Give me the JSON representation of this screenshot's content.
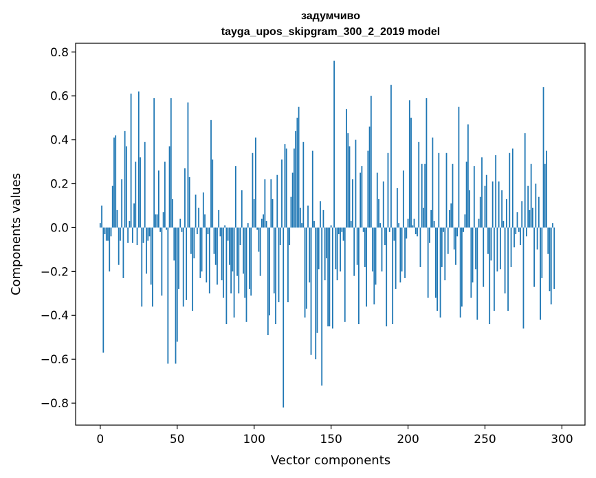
{
  "chart_data": {
    "type": "bar",
    "title": "задумчиво",
    "subtitle": "tayga_upos_skipgram_300_2_2019 model",
    "xlabel": "Vector components",
    "ylabel": "Components values",
    "xlim": [
      -16,
      315
    ],
    "ylim": [
      -0.9,
      0.84
    ],
    "xticks": [
      0,
      50,
      100,
      150,
      200,
      250,
      300
    ],
    "yticks": [
      -0.8,
      -0.6,
      -0.4,
      -0.2,
      0.0,
      0.2,
      0.4,
      0.6,
      0.8
    ],
    "xtick_labels": [
      "0",
      "50",
      "100",
      "150",
      "200",
      "250",
      "300"
    ],
    "ytick_labels": [
      "−0.8",
      "−0.6",
      "−0.4",
      "−0.2",
      "0.0",
      "0.2",
      "0.4",
      "0.6",
      "0.8"
    ],
    "bar_color": "#1f77b4",
    "grid": false,
    "legend": "none",
    "x": "0..299 (component index)",
    "values": [
      0.02,
      0.1,
      -0.57,
      -0.03,
      -0.06,
      -0.06,
      -0.2,
      -0.04,
      0.19,
      0.41,
      0.42,
      0.08,
      -0.17,
      -0.06,
      0.22,
      -0.23,
      0.44,
      0.37,
      -0.07,
      0.03,
      0.61,
      -0.07,
      0.11,
      0.3,
      -0.08,
      0.62,
      0.32,
      -0.36,
      -0.07,
      0.39,
      -0.21,
      -0.06,
      -0.04,
      -0.26,
      -0.36,
      0.59,
      0.06,
      0.06,
      0.26,
      -0.02,
      -0.31,
      0.07,
      0.3,
      -0.01,
      -0.62,
      0.37,
      0.59,
      0.13,
      -0.15,
      -0.62,
      -0.52,
      -0.28,
      0.04,
      -0.02,
      -0.36,
      0.27,
      -0.33,
      0.57,
      0.23,
      -0.12,
      -0.38,
      -0.14,
      0.15,
      -0.03,
      0.09,
      -0.23,
      -0.2,
      0.16,
      0.06,
      -0.25,
      -0.03,
      -0.3,
      0.49,
      0.31,
      -0.12,
      -0.17,
      -0.26,
      0.08,
      -0.04,
      -0.24,
      -0.32,
      0.01,
      -0.44,
      -0.06,
      -0.17,
      -0.3,
      -0.2,
      -0.41,
      0.28,
      -0.22,
      -0.3,
      -0.08,
      0.17,
      -0.21,
      -0.32,
      -0.43,
      0.02,
      -0.28,
      -0.31,
      0.34,
      0.13,
      0.41,
      -0.01,
      -0.11,
      -0.22,
      0.04,
      0.06,
      0.22,
      0.03,
      -0.49,
      -0.4,
      0.22,
      0.13,
      -0.3,
      -0.44,
      0.24,
      -0.34,
      -0.08,
      0.31,
      -0.82,
      0.38,
      0.36,
      -0.34,
      -0.08,
      0.14,
      0.25,
      0.36,
      0.44,
      0.5,
      0.55,
      0.09,
      0.02,
      0.39,
      -0.41,
      -0.37,
      0.1,
      -0.25,
      -0.58,
      0.35,
      0.03,
      -0.6,
      -0.48,
      -0.19,
      0.12,
      -0.72,
      0.08,
      -0.24,
      -0.14,
      -0.45,
      -0.45,
      0.01,
      -0.46,
      0.76,
      -0.19,
      -0.24,
      -0.03,
      -0.2,
      -0.02,
      -0.06,
      -0.43,
      0.54,
      0.43,
      0.37,
      0.03,
      0.22,
      -0.22,
      0.4,
      -0.17,
      -0.44,
      0.25,
      0.28,
      -0.02,
      -0.18,
      -0.36,
      0.35,
      0.46,
      0.6,
      -0.2,
      -0.35,
      -0.26,
      0.25,
      0.13,
      0.02,
      -0.2,
      0.21,
      -0.08,
      -0.45,
      0.34,
      -0.02,
      0.65,
      -0.44,
      -0.06,
      -0.28,
      0.18,
      0.02,
      -0.25,
      -0.2,
      0.26,
      -0.23,
      -0.05,
      0.04,
      0.58,
      0.5,
      0.01,
      0.04,
      -0.03,
      -0.04,
      0.39,
      -0.18,
      0.29,
      0.09,
      0.29,
      0.59,
      -0.32,
      -0.07,
      0.08,
      0.41,
      0.03,
      -0.32,
      -0.38,
      0.34,
      -0.41,
      -0.18,
      -0.02,
      -0.24,
      0.34,
      -0.12,
      0.08,
      0.11,
      0.29,
      -0.1,
      -0.17,
      -0.04,
      0.55,
      -0.41,
      -0.36,
      -0.02,
      0.06,
      0.3,
      0.47,
      0.17,
      -0.32,
      -0.25,
      0.28,
      -0.19,
      -0.42,
      0.04,
      0.14,
      0.32,
      -0.27,
      0.19,
      0.24,
      -0.12,
      -0.44,
      -0.15,
      0.21,
      -0.38,
      0.33,
      -0.2,
      0.21,
      -0.19,
      0.17,
      0.03,
      -0.3,
      0.13,
      -0.38,
      0.34,
      -0.18,
      0.36,
      -0.09,
      -0.03,
      0.07,
      -0.02,
      -0.08,
      0.12,
      -0.46,
      0.43,
      -0.04,
      0.19,
      0.08,
      0.29,
      0.09,
      -0.27,
      0.2,
      -0.1,
      0.14,
      -0.42,
      -0.23,
      0.64,
      0.29,
      0.35,
      -0.12,
      -0.29,
      -0.35,
      0.02,
      -0.28
    ]
  }
}
